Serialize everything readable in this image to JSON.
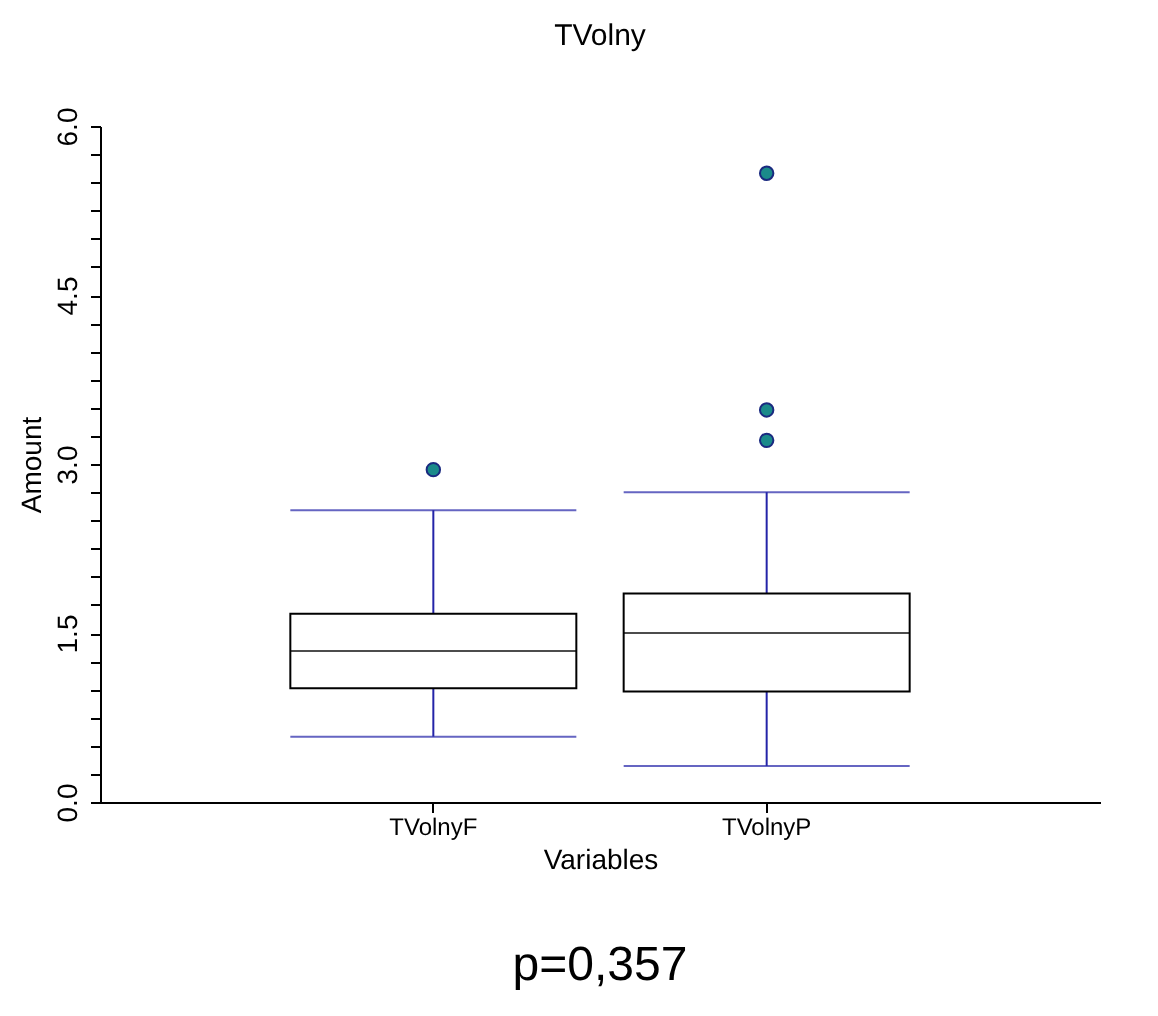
{
  "chart_data": {
    "type": "box",
    "title": "TVolny",
    "xlabel": "Variables",
    "ylabel": "Amount",
    "categories": [
      "TVolnyF",
      "TVolnyP"
    ],
    "boxes": [
      {
        "low": 0.58,
        "q1": 1.01,
        "median": 1.34,
        "q3": 1.67,
        "high": 2.59,
        "outliers": [
          2.95
        ]
      },
      {
        "low": 0.32,
        "q1": 0.98,
        "median": 1.5,
        "q3": 1.85,
        "high": 2.75,
        "outliers": [
          5.58,
          3.48,
          3.21
        ]
      }
    ],
    "ylim": [
      0,
      6
    ],
    "yticks": [
      {
        "value": 0,
        "label": "0.0"
      },
      {
        "value": 0.25,
        "label": null
      },
      {
        "value": 0.5,
        "label": null
      },
      {
        "value": 0.75,
        "label": null
      },
      {
        "value": 1.0,
        "label": null
      },
      {
        "value": 1.25,
        "label": null
      },
      {
        "value": 1.5,
        "label": "1.5"
      },
      {
        "value": 1.75,
        "label": null
      },
      {
        "value": 2.0,
        "label": null
      },
      {
        "value": 2.25,
        "label": null
      },
      {
        "value": 2.5,
        "label": null
      },
      {
        "value": 2.75,
        "label": null
      },
      {
        "value": 3.0,
        "label": "3.0"
      },
      {
        "value": 3.25,
        "label": null
      },
      {
        "value": 3.5,
        "label": null
      },
      {
        "value": 3.75,
        "label": null
      },
      {
        "value": 4.0,
        "label": null
      },
      {
        "value": 4.25,
        "label": null
      },
      {
        "value": 4.5,
        "label": "4.5"
      },
      {
        "value": 4.75,
        "label": null
      },
      {
        "value": 5.0,
        "label": null
      },
      {
        "value": 5.25,
        "label": null
      },
      {
        "value": 5.5,
        "label": null
      },
      {
        "value": 5.75,
        "label": null
      },
      {
        "value": 6.0,
        "label": "6.0"
      }
    ],
    "grid": false,
    "annotations": [
      "p=0,357"
    ]
  }
}
